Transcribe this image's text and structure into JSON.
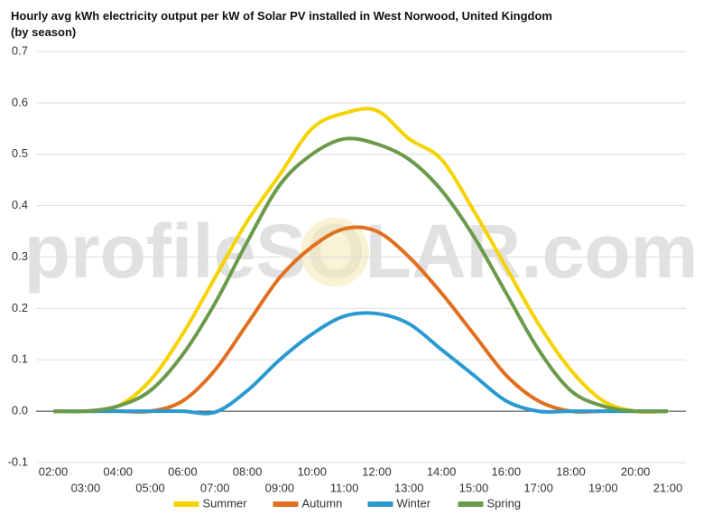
{
  "chart_data": {
    "type": "line",
    "title": "Hourly avg kWh electricity output per kW of Solar PV installed in West Norwood, United Kingdom (by season)",
    "watermark": "profileSOLAR.com",
    "categories": [
      "02:00",
      "03:00",
      "04:00",
      "05:00",
      "06:00",
      "07:00",
      "08:00",
      "09:00",
      "10:00",
      "11:00",
      "12:00",
      "13:00",
      "14:00",
      "15:00",
      "16:00",
      "17:00",
      "18:00",
      "19:00",
      "20:00",
      "21:00"
    ],
    "series": [
      {
        "name": "Summer",
        "color": "#f5d300",
        "values": [
          0,
          0,
          0.01,
          0.06,
          0.15,
          0.26,
          0.37,
          0.46,
          0.55,
          0.58,
          0.585,
          0.53,
          0.49,
          0.39,
          0.28,
          0.17,
          0.08,
          0.02,
          0,
          0
        ]
      },
      {
        "name": "Autumn",
        "color": "#e07020",
        "values": [
          0,
          0,
          0,
          0,
          0.02,
          0.08,
          0.17,
          0.26,
          0.32,
          0.355,
          0.35,
          0.3,
          0.23,
          0.15,
          0.07,
          0.02,
          0,
          0,
          0,
          0
        ]
      },
      {
        "name": "Winter",
        "color": "#2a9ad0",
        "values": [
          0,
          0,
          0,
          0,
          0,
          -0.002,
          0.04,
          0.1,
          0.15,
          0.185,
          0.19,
          0.17,
          0.12,
          0.07,
          0.02,
          0,
          0,
          0,
          0,
          0
        ]
      },
      {
        "name": "Spring",
        "color": "#6a9a4a",
        "values": [
          0,
          0,
          0.01,
          0.04,
          0.11,
          0.21,
          0.33,
          0.44,
          0.5,
          0.53,
          0.52,
          0.49,
          0.43,
          0.34,
          0.23,
          0.12,
          0.04,
          0.01,
          0,
          0
        ]
      }
    ],
    "ylim": [
      -0.1,
      0.7
    ],
    "yticks": [
      -0.1,
      {
        "value": 0,
        "label": "0.0"
      },
      0.1,
      0.2,
      0.3,
      0.4,
      0.5,
      0.6,
      0.7
    ],
    "grid": true
  }
}
